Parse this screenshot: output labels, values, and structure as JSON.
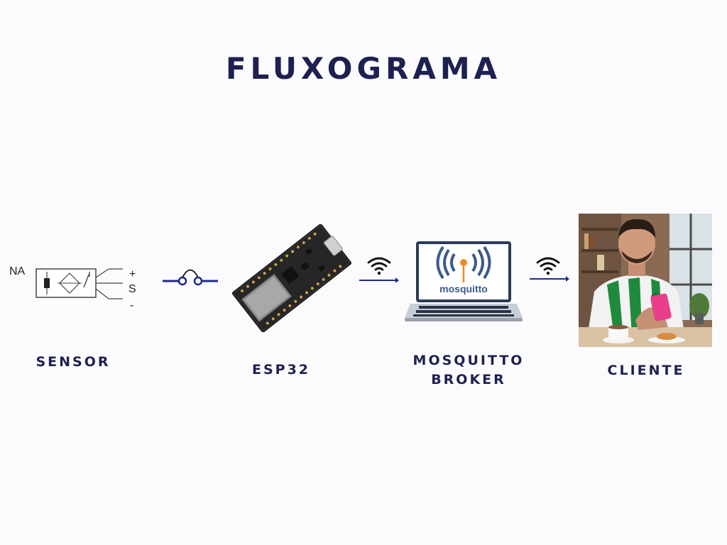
{
  "title": "FLUXOGRAMA",
  "sensor": {
    "label": "SENSOR",
    "symbol_text": "NA",
    "pins": [
      "+",
      "S",
      "-"
    ]
  },
  "esp32": {
    "label": "ESP32"
  },
  "broker": {
    "label_line1": "MOSQUITTO",
    "label_line2": "BROKER",
    "logo_text": "mosquitto"
  },
  "client": {
    "label": "CLIENTE"
  },
  "colors": {
    "accent": "#1d2a8a",
    "title": "#1d2050",
    "mosquitto_blue": "#3c5a8a",
    "mosquitto_orange": "#f08a24",
    "jersey_green": "#1e8a3c"
  }
}
